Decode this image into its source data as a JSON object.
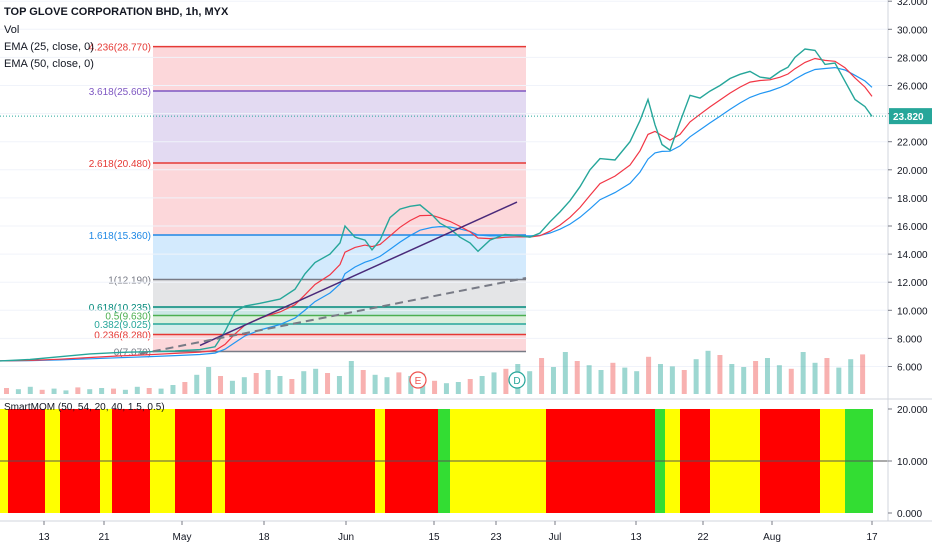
{
  "header": {
    "title": "TOP GLOVE CORPORATION BHD, 1h, MYX",
    "vol": "Vol",
    "ema25": "EMA (25, close, 0)",
    "ema50": "EMA (50, close, 0)"
  },
  "oscillator": {
    "label": "SmartMOM (50, 54, 20, 40, 1.5, 0.5)",
    "axis_ticks": [
      "20.000",
      "10.000",
      "0.000"
    ],
    "colors": {
      "red": "#ff0000",
      "yellow": "#ffff00",
      "green": "#33dd33"
    }
  },
  "price_label": {
    "value": "23.820",
    "color": "#26a69a"
  },
  "chart_data": {
    "type": "candlestick",
    "title": "TOP GLOVE CORPORATION BHD, 1h, MYX",
    "y_ticks": [
      "32.000",
      "30.000",
      "28.000",
      "26.000",
      "24.000",
      "22.000",
      "20.000",
      "18.000",
      "16.000",
      "14.000",
      "12.000",
      "10.000",
      "8.000",
      "6.000"
    ],
    "x_ticks": [
      "13",
      "21",
      "May",
      "18",
      "Jun",
      "15",
      "23",
      "Jul",
      "13",
      "22",
      "Aug",
      "17"
    ],
    "last_price": 23.82,
    "fib_levels": [
      {
        "label": "4.236(28.770)",
        "value": 28.77,
        "color": "#e53935"
      },
      {
        "label": "3.618(25.605)",
        "value": 25.605,
        "color": "#7e57c2"
      },
      {
        "label": "2.618(20.480)",
        "value": 20.48,
        "color": "#e53935"
      },
      {
        "label": "1.618(15.360)",
        "value": 15.36,
        "color": "#1e88e5"
      },
      {
        "label": "1(12.190)",
        "value": 12.19,
        "color": "#787b86"
      },
      {
        "label": "0.618(10.235)",
        "value": 10.235,
        "color": "#00897b"
      },
      {
        "label": "0.5(9.630)",
        "value": 9.63,
        "color": "#4caf50"
      },
      {
        "label": "0.382(9.025)",
        "value": 9.025,
        "color": "#26a69a"
      },
      {
        "label": "0.236(8.280)",
        "value": 8.28,
        "color": "#e53935"
      },
      {
        "label": "0(7.070)",
        "value": 7.07,
        "color": "#787b86"
      }
    ],
    "events": [
      "E",
      "D"
    ],
    "price_path": [
      [
        0,
        6.4
      ],
      [
        30,
        6.5
      ],
      [
        60,
        6.7
      ],
      [
        90,
        6.9
      ],
      [
        120,
        7.0
      ],
      [
        150,
        7.05
      ],
      [
        175,
        7.1
      ],
      [
        200,
        7.2
      ],
      [
        215,
        7.4
      ],
      [
        225,
        8.5
      ],
      [
        235,
        9.9
      ],
      [
        245,
        10.3
      ],
      [
        260,
        10.5
      ],
      [
        280,
        10.8
      ],
      [
        295,
        11.5
      ],
      [
        305,
        12.6
      ],
      [
        315,
        13.4
      ],
      [
        330,
        14.0
      ],
      [
        340,
        14.8
      ],
      [
        345,
        16.0
      ],
      [
        355,
        15.2
      ],
      [
        365,
        15.0
      ],
      [
        372,
        14.3
      ],
      [
        380,
        15.0
      ],
      [
        390,
        16.6
      ],
      [
        400,
        17.2
      ],
      [
        410,
        17.4
      ],
      [
        420,
        17.5
      ],
      [
        432,
        16.8
      ],
      [
        440,
        16.2
      ],
      [
        450,
        15.8
      ],
      [
        460,
        15.2
      ],
      [
        470,
        14.8
      ],
      [
        478,
        14.2
      ],
      [
        490,
        15.0
      ],
      [
        505,
        15.4
      ],
      [
        520,
        15.3
      ],
      [
        530,
        15.2
      ],
      [
        540,
        15.5
      ],
      [
        550,
        16.3
      ],
      [
        560,
        17.0
      ],
      [
        570,
        17.8
      ],
      [
        580,
        18.8
      ],
      [
        590,
        20.0
      ],
      [
        600,
        20.8
      ],
      [
        615,
        20.7
      ],
      [
        630,
        22.0
      ],
      [
        640,
        23.5
      ],
      [
        648,
        25.0
      ],
      [
        655,
        23.2
      ],
      [
        662,
        21.8
      ],
      [
        670,
        21.4
      ],
      [
        680,
        23.4
      ],
      [
        690,
        25.3
      ],
      [
        700,
        25.1
      ],
      [
        710,
        25.6
      ],
      [
        720,
        26.0
      ],
      [
        730,
        26.5
      ],
      [
        740,
        26.8
      ],
      [
        750,
        27.0
      ],
      [
        760,
        26.6
      ],
      [
        770,
        26.5
      ],
      [
        780,
        27.0
      ],
      [
        788,
        27.3
      ],
      [
        795,
        28.0
      ],
      [
        805,
        28.6
      ],
      [
        815,
        28.5
      ],
      [
        825,
        27.5
      ],
      [
        835,
        27.6
      ],
      [
        845,
        26.3
      ],
      [
        855,
        25.0
      ],
      [
        865,
        24.5
      ],
      [
        872,
        23.8
      ]
    ],
    "volume": [
      0.1,
      0.08,
      0.12,
      0.07,
      0.09,
      0.06,
      0.11,
      0.08,
      0.1,
      0.09,
      0.07,
      0.12,
      0.1,
      0.09,
      0.15,
      0.2,
      0.32,
      0.45,
      0.3,
      0.22,
      0.28,
      0.35,
      0.4,
      0.3,
      0.25,
      0.38,
      0.42,
      0.35,
      0.3,
      0.55,
      0.4,
      0.32,
      0.28,
      0.36,
      0.3,
      0.34,
      0.22,
      0.18,
      0.2,
      0.25,
      0.3,
      0.36,
      0.42,
      0.5,
      0.38,
      0.6,
      0.45,
      0.7,
      0.55,
      0.48,
      0.4,
      0.52,
      0.44,
      0.38,
      0.62,
      0.5,
      0.46,
      0.4,
      0.58,
      0.72,
      0.65,
      0.5,
      0.45,
      0.55,
      0.6,
      0.48,
      0.42,
      0.7,
      0.52,
      0.6,
      0.44,
      0.58,
      0.66
    ]
  }
}
